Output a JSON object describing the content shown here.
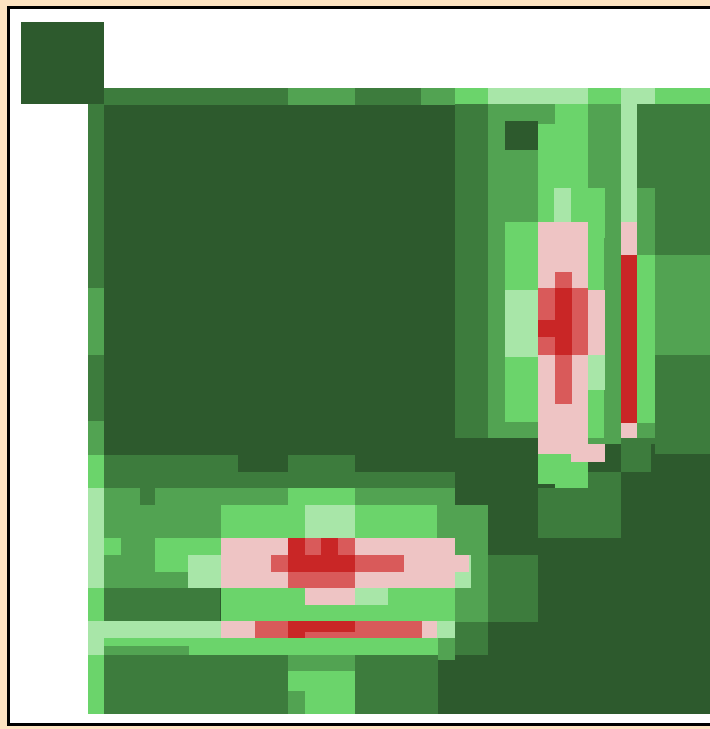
{
  "palette": {
    "dark_green": "#2d5a2d",
    "mid_green": "#3d7c3d",
    "green": "#52a352",
    "light_green": "#6bd46b",
    "pale_green": "#a8e6a8",
    "pale_pink": "#eec4c4",
    "pink": "#d95a5a",
    "red": "#c92626",
    "white": "#ffffff",
    "frame_outer": "#fde3c1"
  },
  "legend_swatch": {
    "color": "#2d5a2d"
  },
  "hotspots": [
    {
      "name": "upper-right-vertical-hotspot",
      "intensity": "high"
    },
    {
      "name": "right-edge-vertical-hotspot",
      "intensity": "high"
    },
    {
      "name": "lower-left-horizontal-hotspot",
      "intensity": "high"
    },
    {
      "name": "bottom-horizontal-band",
      "intensity": "high"
    }
  ]
}
